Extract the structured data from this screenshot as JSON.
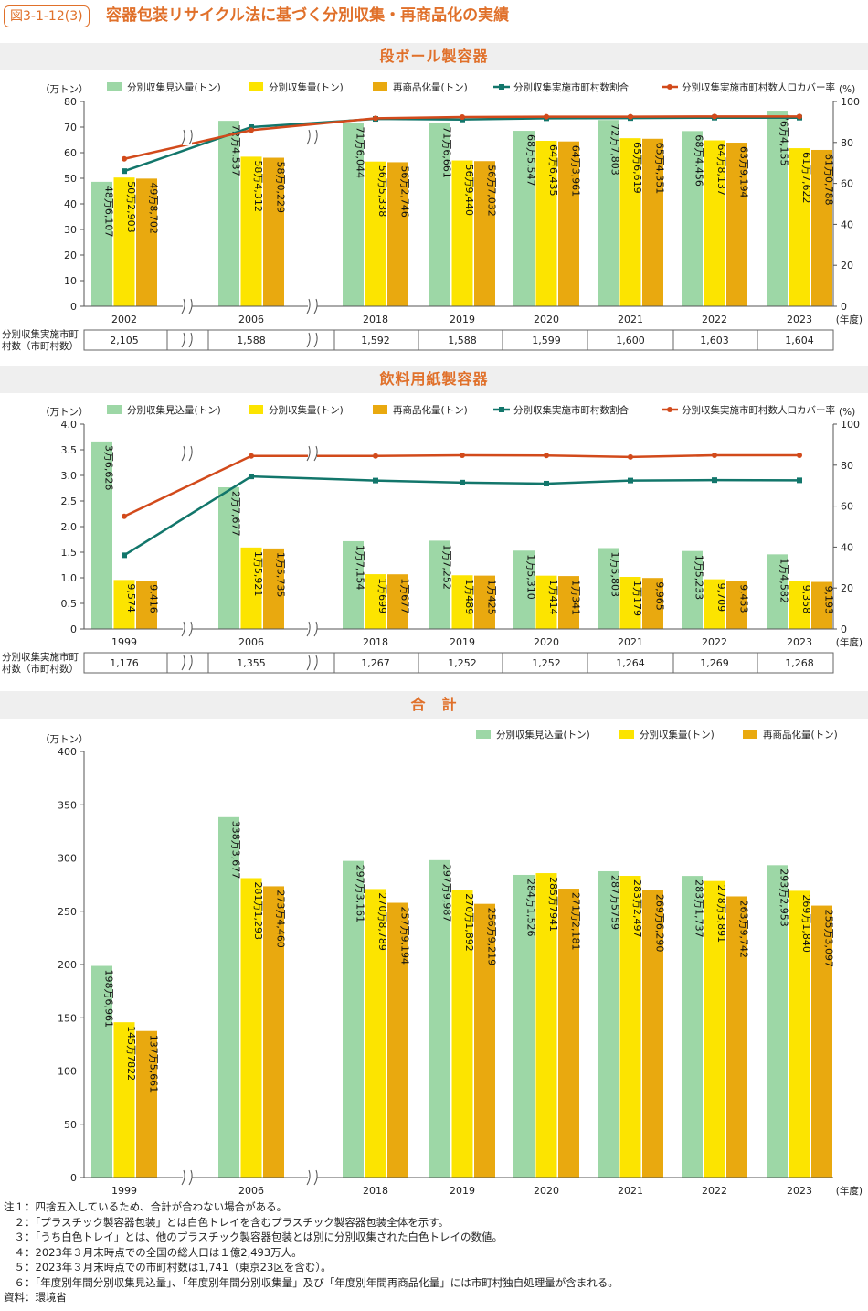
{
  "figure": {
    "badge": "図3-1-12(3)",
    "title": "容器包装リサイクル法に基づく分別収集・再商品化の実績"
  },
  "colors": {
    "bar1": "#9dd7a6",
    "bar2": "#fce400",
    "bar3": "#e9a90f",
    "line1": "#12766b",
    "line2": "#d24a1b",
    "accent": "#e0702a"
  },
  "chart_data": [
    {
      "type": "bar",
      "title": "段ボール製容器",
      "ylabel": "（万トン）",
      "y2label": "(%)",
      "xunit": "(年度)",
      "ylim": [
        0,
        80
      ],
      "y2lim": [
        0,
        100
      ],
      "yticks": [
        0,
        10,
        20,
        30,
        40,
        50,
        60,
        70,
        80
      ],
      "y2ticks": [
        0,
        20,
        40,
        60,
        80,
        100
      ],
      "categories": [
        "2002",
        "2006",
        "2018",
        "2019",
        "2020",
        "2021",
        "2022",
        "2023"
      ],
      "series": [
        {
          "name": "分別収集見込量(トン)",
          "kind": "bar",
          "values": [
            48.6107,
            72.4537,
            71.6044,
            71.6661,
            68.5547,
            72.7803,
            68.4456,
            76.4155
          ],
          "labels": [
            "48万6,107",
            "72万4,537",
            "71万6,044",
            "71万6,661",
            "68万5,547",
            "72万7,803",
            "68万4,456",
            "76万4,155"
          ]
        },
        {
          "name": "分別収集量(トン)",
          "kind": "bar",
          "values": [
            50.2903,
            58.4312,
            56.5338,
            56.944,
            64.6435,
            65.6619,
            64.8137,
            61.7622
          ],
          "labels": [
            "50万2,903",
            "58万4,312",
            "56万5,338",
            "56万9,440",
            "64万6,435",
            "65万6,619",
            "64万8,137",
            "61万7,622"
          ]
        },
        {
          "name": "再商品化量(トン)",
          "kind": "bar",
          "values": [
            49.8702,
            58.0229,
            56.2746,
            56.7032,
            64.3961,
            65.4351,
            63.9194,
            61.0788
          ],
          "labels": [
            "49万8,702",
            "58万0,229",
            "56万2,746",
            "56万7,032",
            "64万3,961",
            "65万4,351",
            "63万9,194",
            "61万0,788"
          ]
        },
        {
          "name": "分別収集実施市町村数割合",
          "kind": "line",
          "axis": "right",
          "values": [
            66,
            87.5,
            91.5,
            91.2,
            91.8,
            91.9,
            92.1,
            92.1
          ]
        },
        {
          "name": "分別収集実施市町村数人口カバー率",
          "kind": "line",
          "axis": "right",
          "values": [
            72,
            86,
            91.8,
            92.4,
            92.6,
            92.6,
            92.7,
            92.7
          ]
        }
      ],
      "table": {
        "label1": "分別収集実施市町",
        "label2": "村数（市町村数）",
        "values": [
          "2,105",
          "1,588",
          "1,592",
          "1,588",
          "1,599",
          "1,600",
          "1,603",
          "1,604"
        ]
      }
    },
    {
      "type": "bar",
      "title": "飲料用紙製容器",
      "ylabel": "（万トン）",
      "y2label": "(%)",
      "xunit": "(年度)",
      "ylim": [
        0,
        4
      ],
      "y2lim": [
        0,
        100
      ],
      "yticks": [
        "0",
        "0.5",
        "1.0",
        "1.5",
        "2.0",
        "2.5",
        "3.0",
        "3.5",
        "4.0"
      ],
      "y2ticks": [
        0,
        20,
        40,
        60,
        80,
        100
      ],
      "categories": [
        "1999",
        "2006",
        "2018",
        "2019",
        "2020",
        "2021",
        "2022",
        "2023"
      ],
      "series": [
        {
          "name": "分別収集見込量(トン)",
          "kind": "bar",
          "values": [
            3.6626,
            2.7677,
            1.7154,
            1.7252,
            1.531,
            1.5803,
            1.5233,
            1.4582
          ],
          "labels": [
            "3万6,626",
            "2万7,677",
            "1万7,154",
            "1万7,252",
            "1万5,310",
            "1万5,803",
            "1万5,233",
            "1万4,582"
          ]
        },
        {
          "name": "分別収集量(トン)",
          "kind": "bar",
          "values": [
            0.9574,
            1.5921,
            1.0699,
            1.0489,
            1.0414,
            1.0179,
            0.9709,
            0.9358
          ],
          "labels": [
            "9,574",
            "1万5,921",
            "1万699",
            "1万489",
            "1万414",
            "1万179",
            "9,709",
            "9,358"
          ]
        },
        {
          "name": "再商品化量(トン)",
          "kind": "bar",
          "values": [
            0.9416,
            1.5735,
            1.0677,
            1.0425,
            1.0341,
            0.9965,
            0.9453,
            0.9193
          ],
          "labels": [
            "9,416",
            "1万5,735",
            "1万677",
            "1万425",
            "1万341",
            "9,965",
            "9,453",
            "9,193"
          ]
        },
        {
          "name": "分別収集実施市町村数割合",
          "kind": "line",
          "axis": "right",
          "values": [
            36,
            74.5,
            72.5,
            71.5,
            71,
            72.5,
            72.7,
            72.6
          ]
        },
        {
          "name": "分別収集実施市町村数人口カバー率",
          "kind": "line",
          "axis": "right",
          "values": [
            55,
            84.5,
            84.5,
            84.8,
            84.7,
            84,
            84.8,
            84.8
          ]
        }
      ],
      "table": {
        "label1": "分別収集実施市町",
        "label2": "村数（市町村数）",
        "values": [
          "1,176",
          "1,355",
          "1,267",
          "1,252",
          "1,252",
          "1,264",
          "1,269",
          "1,268"
        ]
      }
    },
    {
      "type": "bar",
      "title": "合　計",
      "ylabel": "（万トン）",
      "xunit": "(年度)",
      "ylim": [
        0,
        400
      ],
      "yticks": [
        0,
        50,
        100,
        150,
        200,
        250,
        300,
        350,
        400
      ],
      "categories": [
        "1999",
        "2006",
        "2018",
        "2019",
        "2020",
        "2021",
        "2022",
        "2023"
      ],
      "series": [
        {
          "name": "分別収集見込量(トン)",
          "kind": "bar",
          "values": [
            198.6961,
            338.3677,
            297.3161,
            297.9987,
            284.1526,
            287.5759,
            283.1737,
            293.2953
          ],
          "labels": [
            "198万6,961",
            "338万3,677",
            "297万3,161",
            "297万9,987",
            "284万1,526",
            "287万5759",
            "283万1,737",
            "293万2,953"
          ]
        },
        {
          "name": "分別収集量(トン)",
          "kind": "bar",
          "values": [
            145.7822,
            281.1293,
            270.8789,
            270.1892,
            285.7941,
            283.2497,
            278.3891,
            269.184
          ],
          "labels": [
            "145万7822",
            "281万1,293",
            "270万8,789",
            "270万1,892",
            "285万7941",
            "283万2,497",
            "278万3,891",
            "269万1,840"
          ]
        },
        {
          "name": "再商品化量(トン)",
          "kind": "bar",
          "values": [
            137.5661,
            273.446,
            257.9194,
            256.9219,
            271.2181,
            269.629,
            263.9742,
            255.3097
          ],
          "labels": [
            "137万5,661",
            "273万4,460",
            "257万9,194",
            "256万9,219",
            "271万2,181",
            "269万6,290",
            "263万9,742",
            "255万3,097"
          ]
        }
      ]
    }
  ],
  "notes": [
    "注１：四捨五入しているため、合計が合わない場合がある。",
    "　２：「プラスチック製容器包装」とは白色トレイを含むプラスチック製容器包装全体を示す。",
    "　３：「うち白色トレイ」とは、他のプラスチック製容器包装とは別に分別収集された白色トレイの数値。",
    "　４：2023年３月末時点での全国の総人口は１億2,493万人。",
    "　５：2023年３月末時点での市町村数は1,741（東京23区を含む）。",
    "　６：「年度別年間分別収集見込量」、「年度別年間分別収集量」及び「年度別年間再商品化量」には市町村独自処理量が含まれる。",
    "資料：環境省"
  ]
}
